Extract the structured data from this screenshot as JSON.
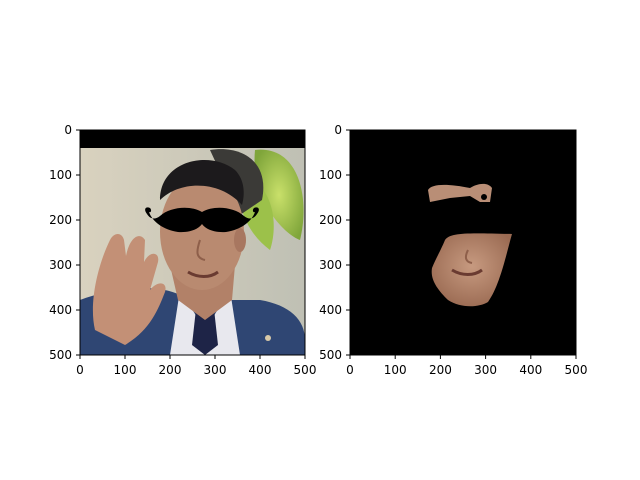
{
  "chart_data": [
    {
      "type": "image",
      "title": "",
      "xlabel": "",
      "ylabel": "",
      "xlim": [
        0,
        500
      ],
      "ylim": [
        500,
        0
      ],
      "xticks": [
        0,
        100,
        200,
        300,
        400,
        500
      ],
      "yticks": [
        0,
        100,
        200,
        300,
        400,
        500
      ],
      "xtick_labels": [
        "0",
        "100",
        "200",
        "300",
        "400",
        "500"
      ],
      "ytick_labels": [
        "0",
        "100",
        "200",
        "300",
        "400",
        "500"
      ],
      "content": "photo of a man waving with a black mustache overlay across the eyes"
    },
    {
      "type": "image",
      "title": "",
      "xlabel": "",
      "ylabel": "",
      "xlim": [
        0,
        500
      ],
      "ylim": [
        500,
        0
      ],
      "xticks": [
        0,
        100,
        200,
        300,
        400,
        500
      ],
      "yticks": [
        0,
        100,
        200,
        300,
        400,
        500
      ],
      "xtick_labels": [
        "0",
        "100",
        "200",
        "300",
        "400",
        "500"
      ],
      "ytick_labels": [
        "0",
        "100",
        "200",
        "300",
        "400",
        "500"
      ],
      "content": "segmented skin-region mask on black background"
    }
  ]
}
